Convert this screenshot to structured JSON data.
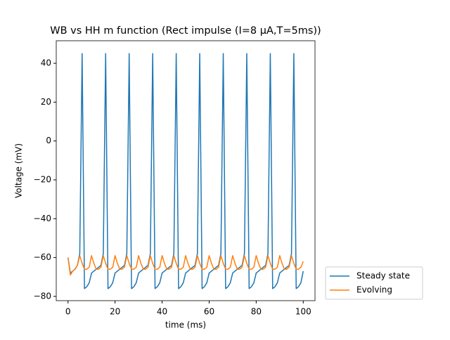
{
  "chart_data": {
    "type": "line",
    "title": "WB vs HH m function (Rect impulse (I=8 µA,T=5ms))",
    "x_label": "time (ms)",
    "y_label": "Voltage (mV)",
    "x": [
      0,
      1,
      2,
      3,
      4,
      5,
      6,
      7,
      8,
      9,
      10,
      11,
      12,
      13,
      14,
      15,
      16,
      17,
      18,
      19,
      20,
      21,
      22,
      23,
      24,
      25,
      26,
      27,
      28,
      29,
      30,
      31,
      32,
      33,
      34,
      35,
      36,
      37,
      38,
      39,
      40,
      41,
      42,
      43,
      44,
      45,
      46,
      47,
      48,
      49,
      50,
      51,
      52,
      53,
      54,
      55,
      56,
      57,
      58,
      59,
      60,
      61,
      62,
      63,
      64,
      65,
      66,
      67,
      68,
      69,
      70,
      71,
      72,
      73,
      74,
      75,
      76,
      77,
      78,
      79,
      80,
      81,
      82,
      83,
      84,
      85,
      86,
      87,
      88,
      89,
      90,
      91,
      92,
      93,
      94,
      95,
      96,
      97,
      98,
      99,
      100
    ],
    "series": [
      {
        "name": "Steady state",
        "color": "#1f77b4",
        "values": [
          -60,
          -68,
          -67,
          -66,
          -64,
          -58,
          45,
          -76,
          -75,
          -73,
          -68,
          -67,
          -66,
          -65,
          -64,
          -58,
          45,
          -76,
          -75,
          -73,
          -68,
          -67,
          -66,
          -65,
          -64,
          -58,
          45,
          -76,
          -75,
          -73,
          -68,
          -67,
          -66,
          -65,
          -64,
          -58,
          45,
          -76,
          -75,
          -73,
          -68,
          -67,
          -66,
          -65,
          -64,
          -58,
          45,
          -76,
          -75,
          -73,
          -68,
          -67,
          -66,
          -65,
          -64,
          -58,
          45,
          -76,
          -75,
          -73,
          -68,
          -67,
          -66,
          -65,
          -64,
          -58,
          45,
          -76,
          -75,
          -73,
          -68,
          -67,
          -66,
          -65,
          -64,
          -58,
          45,
          -76,
          -75,
          -73,
          -68,
          -67,
          -66,
          -65,
          -64,
          -58,
          45,
          -76,
          -75,
          -73,
          -68,
          -67,
          -66,
          -65,
          -64,
          -58,
          45,
          -76,
          -75,
          -73,
          -67
        ]
      },
      {
        "name": "Evolving",
        "color": "#ff7f0e",
        "values": [
          -60,
          -69,
          -67,
          -66,
          -64,
          -59,
          -63,
          -66,
          -66,
          -65,
          -59,
          -63,
          -66,
          -66,
          -65,
          -59,
          -63,
          -66,
          -66,
          -65,
          -59,
          -63,
          -66,
          -66,
          -65,
          -59,
          -63,
          -66,
          -66,
          -65,
          -59,
          -63,
          -66,
          -66,
          -65,
          -59,
          -63,
          -66,
          -66,
          -65,
          -59,
          -63,
          -66,
          -66,
          -65,
          -59,
          -63,
          -66,
          -66,
          -65,
          -59,
          -63,
          -66,
          -66,
          -65,
          -59,
          -63,
          -66,
          -66,
          -65,
          -59,
          -63,
          -66,
          -66,
          -65,
          -59,
          -63,
          -66,
          -66,
          -65,
          -59,
          -63,
          -66,
          -66,
          -65,
          -59,
          -63,
          -66,
          -66,
          -65,
          -59,
          -63,
          -66,
          -66,
          -65,
          -59,
          -63,
          -66,
          -66,
          -65,
          -59,
          -63,
          -66,
          -66,
          -65,
          -59,
          -63,
          -66,
          -66,
          -65,
          -62
        ]
      }
    ],
    "xlim": [
      -5,
      105
    ],
    "xticks": [
      0,
      20,
      40,
      60,
      80,
      100
    ],
    "ylim": [
      -82.2,
      51.6
    ],
    "yticks": [
      {
        "value": -80,
        "label": "−80"
      },
      {
        "value": -60,
        "label": "−60"
      },
      {
        "value": -40,
        "label": "−40"
      },
      {
        "value": -20,
        "label": "−20"
      },
      0,
      20,
      40
    ],
    "grid": false,
    "legend": "outside lower right"
  }
}
